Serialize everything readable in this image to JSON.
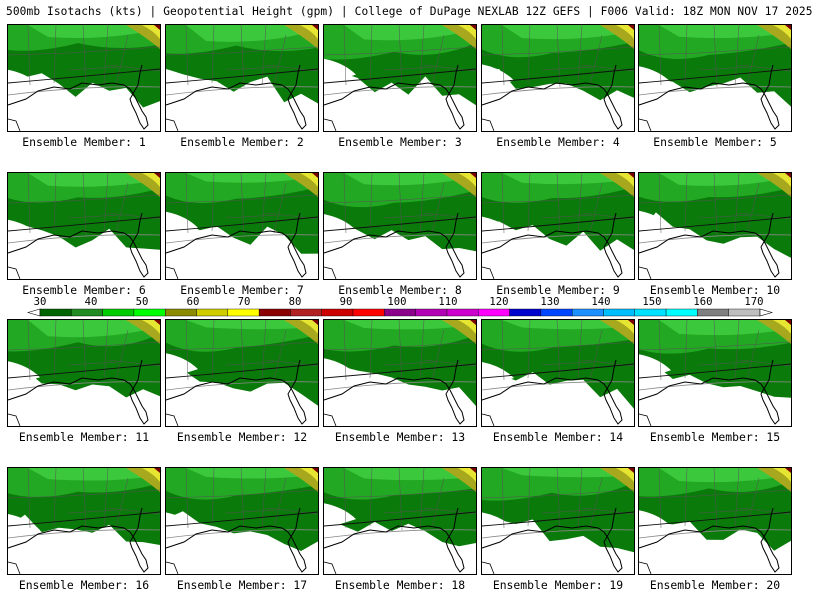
{
  "header": {
    "title": "500mb Isotachs (kts) | Geopotential Height (gpm) | College of DuPage NEXLAB   12Z GEFS | F006 Valid: 18Z MON NOV 17 2025"
  },
  "panels": [
    {
      "label": "Ensemble Member: 1"
    },
    {
      "label": "Ensemble Member: 2"
    },
    {
      "label": "Ensemble Member: 3"
    },
    {
      "label": "Ensemble Member: 4"
    },
    {
      "label": "Ensemble Member: 5"
    },
    {
      "label": "Ensemble Member: 6"
    },
    {
      "label": "Ensemble Member: 7"
    },
    {
      "label": "Ensemble Member: 8"
    },
    {
      "label": "Ensemble Member: 9"
    },
    {
      "label": "Ensemble Member: 10"
    },
    {
      "label": "Ensemble Member: 11"
    },
    {
      "label": "Ensemble Member: 12"
    },
    {
      "label": "Ensemble Member: 13"
    },
    {
      "label": "Ensemble Member: 14"
    },
    {
      "label": "Ensemble Member: 15"
    },
    {
      "label": "Ensemble Member: 16"
    },
    {
      "label": "Ensemble Member: 17"
    },
    {
      "label": "Ensemble Member: 18"
    },
    {
      "label": "Ensemble Member: 19"
    },
    {
      "label": "Ensemble Member: 20"
    }
  ],
  "colorbar": {
    "labels": [
      "30",
      "40",
      "50",
      "60",
      "70",
      "80",
      "90",
      "100",
      "110",
      "120",
      "130",
      "140",
      "150",
      "160",
      "170"
    ],
    "colors": [
      "#006400",
      "#228b22",
      "#00cd00",
      "#00ff00",
      "#8b8b00",
      "#cdcd00",
      "#ffff00",
      "#8b0000",
      "#b22222",
      "#cd0000",
      "#ff0000",
      "#8b008b",
      "#b400b4",
      "#cd00cd",
      "#ff00ff",
      "#0000cd",
      "#0046ff",
      "#1e90ff",
      "#00bfff",
      "#00e0ff",
      "#00ffff",
      "#808080",
      "#bebebe"
    ]
  },
  "map_colors": {
    "dark_green": "#0a7a0a",
    "mid_green": "#22a822",
    "light_green": "#3cc83c",
    "olive": "#a8a81e",
    "yellow": "#e6e632",
    "dark_red": "#7a0000"
  }
}
